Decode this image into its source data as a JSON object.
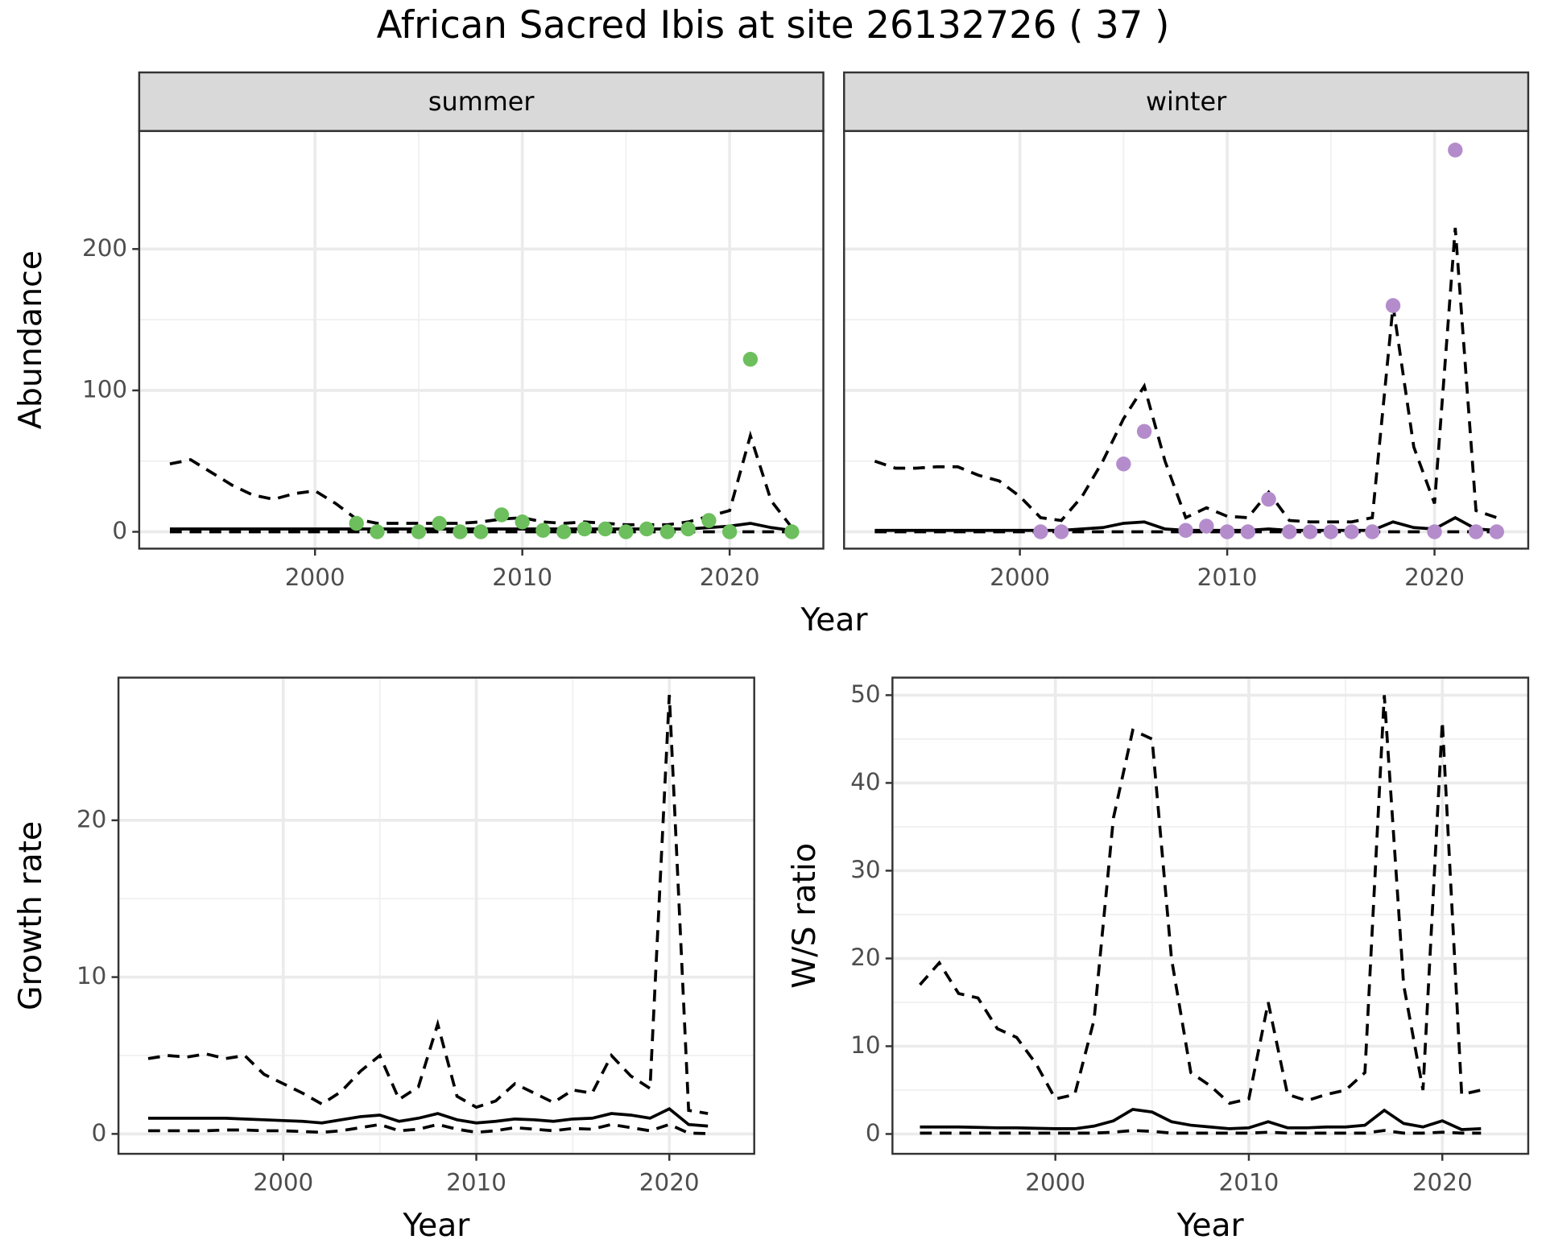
{
  "title": "African Sacred Ibis at site 26132726 ( 37 )",
  "x_label": "Year",
  "chart_data": [
    {
      "type": "line",
      "title": "summer",
      "y_label": "Abundance",
      "x": [
        1993,
        1994,
        1995,
        1996,
        1997,
        1998,
        1999,
        2000,
        2001,
        2002,
        2003,
        2004,
        2005,
        2006,
        2007,
        2008,
        2009,
        2010,
        2011,
        2012,
        2013,
        2014,
        2015,
        2016,
        2017,
        2018,
        2019,
        2020,
        2021,
        2022,
        2023
      ],
      "series": [
        {
          "color": "#000000",
          "dashed": true,
          "values": [
            48,
            51,
            42,
            33,
            26,
            23,
            27,
            29,
            20,
            9,
            6,
            6,
            6,
            6,
            6,
            7,
            9,
            10,
            7,
            6,
            7,
            6,
            5,
            5,
            5,
            7,
            11,
            15,
            68,
            22,
            3
          ]
        },
        {
          "color": "#000000",
          "dashed": false,
          "values": [
            2,
            2,
            2,
            2,
            2,
            2,
            2,
            2,
            2,
            2,
            2,
            2,
            2,
            2,
            2,
            2,
            2,
            2,
            2,
            2,
            2,
            2,
            2,
            2,
            2,
            2,
            3,
            4,
            6,
            3,
            1
          ]
        },
        {
          "color": "#000000",
          "dashed": true,
          "values": [
            0,
            0,
            0,
            0,
            0,
            0,
            0,
            0,
            0,
            0,
            0,
            0,
            0,
            0,
            0,
            0,
            0,
            0,
            0,
            0,
            0,
            0,
            0,
            0,
            0,
            0,
            0,
            0,
            0,
            0,
            0
          ]
        }
      ],
      "points": {
        "color": "#6cbf5c",
        "x": [
          2002,
          2003,
          2005,
          2006,
          2007,
          2008,
          2009,
          2010,
          2011,
          2012,
          2013,
          2014,
          2015,
          2016,
          2017,
          2018,
          2019,
          2020,
          2021,
          2023
        ],
        "values": [
          6,
          0,
          0,
          6,
          0,
          0,
          12,
          7,
          1,
          0,
          2,
          2,
          0,
          2,
          0,
          2,
          8,
          0,
          122,
          0
        ]
      },
      "xlim": [
        1991.52,
        2024.52
      ],
      "xticks": [
        2000,
        2010,
        2020
      ],
      "ylim": [
        -11.9,
        283.5
      ],
      "yticks": [
        0,
        100,
        200
      ],
      "grid": true
    },
    {
      "type": "line",
      "title": "winter",
      "x": [
        1993,
        1994,
        1995,
        1996,
        1997,
        1998,
        1999,
        2000,
        2001,
        2002,
        2003,
        2004,
        2005,
        2006,
        2007,
        2008,
        2009,
        2010,
        2011,
        2012,
        2013,
        2014,
        2015,
        2016,
        2017,
        2018,
        2019,
        2020,
        2021,
        2022,
        2023
      ],
      "series": [
        {
          "color": "#000000",
          "dashed": true,
          "values": [
            50,
            45,
            45,
            46,
            46,
            40,
            36,
            25,
            10,
            8,
            25,
            50,
            80,
            103,
            50,
            10,
            17,
            11,
            10,
            28,
            8,
            7,
            7,
            7,
            10,
            160,
            60,
            20,
            215,
            15,
            10
          ]
        },
        {
          "color": "#000000",
          "dashed": false,
          "values": [
            1,
            1,
            1,
            1,
            1,
            1,
            1,
            1,
            1,
            1,
            2,
            3,
            6,
            7,
            2,
            1,
            1,
            1,
            1,
            2,
            1,
            1,
            1,
            1,
            1,
            7,
            3,
            2,
            10,
            2,
            1
          ]
        },
        {
          "color": "#000000",
          "dashed": true,
          "values": [
            0,
            0,
            0,
            0,
            0,
            0,
            0,
            0,
            0,
            0,
            0,
            0,
            0,
            0,
            0,
            0,
            0,
            0,
            0,
            0,
            0,
            0,
            0,
            0,
            0,
            0,
            0,
            0,
            0,
            0,
            0
          ]
        }
      ],
      "points": {
        "color": "#b48ccb",
        "x": [
          2001,
          2002,
          2005,
          2006,
          2008,
          2009,
          2010,
          2011,
          2012,
          2013,
          2014,
          2015,
          2016,
          2017,
          2018,
          2020,
          2021,
          2022,
          2023
        ],
        "values": [
          0,
          0,
          48,
          71,
          1,
          4,
          0,
          0,
          23,
          0,
          0,
          0,
          0,
          0,
          160,
          0,
          270,
          0,
          0
        ]
      },
      "xlim": [
        1991.52,
        2024.52
      ],
      "xticks": [
        2000,
        2010,
        2020
      ],
      "ylim": [
        -11.9,
        283.5
      ],
      "yticks": [
        0,
        100,
        200
      ],
      "grid": true
    },
    {
      "type": "line",
      "y_label": "Growth rate",
      "x_label": "Year",
      "x": [
        1993,
        1994,
        1995,
        1996,
        1997,
        1998,
        1999,
        2000,
        2001,
        2002,
        2003,
        2004,
        2005,
        2006,
        2007,
        2008,
        2009,
        2010,
        2011,
        2012,
        2013,
        2014,
        2015,
        2016,
        2017,
        2018,
        2019,
        2020,
        2021,
        2022
      ],
      "series": [
        {
          "color": "#000000",
          "dashed": true,
          "values": [
            4.8,
            5,
            4.9,
            5.1,
            4.8,
            5,
            3.8,
            3.2,
            2.6,
            1.9,
            2.7,
            4,
            5,
            2.2,
            3,
            7,
            2.4,
            1.7,
            2.1,
            3.2,
            2.6,
            2,
            2.8,
            2.6,
            5,
            3.7,
            2.9,
            28,
            1.5,
            1.3
          ]
        },
        {
          "color": "#000000",
          "dashed": false,
          "values": [
            1,
            1,
            1,
            1,
            1,
            0.95,
            0.9,
            0.85,
            0.8,
            0.7,
            0.9,
            1.1,
            1.2,
            0.8,
            1,
            1.3,
            0.9,
            0.7,
            0.8,
            0.95,
            0.9,
            0.8,
            0.95,
            1,
            1.3,
            1.2,
            1,
            1.6,
            0.6,
            0.5
          ]
        },
        {
          "color": "#000000",
          "dashed": true,
          "values": [
            0.2,
            0.2,
            0.2,
            0.2,
            0.25,
            0.25,
            0.2,
            0.2,
            0.15,
            0.1,
            0.2,
            0.4,
            0.6,
            0.2,
            0.3,
            0.6,
            0.3,
            0.1,
            0.2,
            0.4,
            0.3,
            0.2,
            0.35,
            0.3,
            0.6,
            0.4,
            0.2,
            0.6,
            0.05,
            0.02
          ]
        }
      ],
      "xlim": [
        1991.46,
        2024.4
      ],
      "xticks": [
        2000,
        2010,
        2020
      ],
      "ylim": [
        -1.27,
        29.1
      ],
      "yticks": [
        0,
        10,
        20
      ],
      "grid": true
    },
    {
      "type": "line",
      "y_label": "W/S ratio",
      "x_label": "Year",
      "x": [
        1993,
        1994,
        1995,
        1996,
        1997,
        1998,
        1999,
        2000,
        2001,
        2002,
        2003,
        2004,
        2005,
        2006,
        2007,
        2008,
        2009,
        2010,
        2011,
        2012,
        2013,
        2014,
        2015,
        2016,
        2017,
        2018,
        2019,
        2020,
        2021,
        2022
      ],
      "series": [
        {
          "color": "#000000",
          "dashed": true,
          "values": [
            17,
            19.5,
            16,
            15.5,
            12,
            11,
            8,
            4,
            4.5,
            13,
            36,
            46,
            45,
            20,
            7,
            5.5,
            3.5,
            4,
            15,
            4.5,
            3.8,
            4.5,
            5,
            7,
            50,
            17,
            5,
            47,
            4.5,
            5
          ]
        },
        {
          "color": "#000000",
          "dashed": false,
          "values": [
            0.8,
            0.8,
            0.8,
            0.75,
            0.7,
            0.7,
            0.65,
            0.6,
            0.6,
            0.9,
            1.5,
            2.8,
            2.5,
            1.4,
            1,
            0.8,
            0.6,
            0.7,
            1.4,
            0.7,
            0.7,
            0.8,
            0.8,
            1,
            2.7,
            1.2,
            0.8,
            1.5,
            0.5,
            0.6
          ]
        },
        {
          "color": "#000000",
          "dashed": true,
          "values": [
            0.1,
            0.1,
            0.1,
            0.1,
            0.1,
            0.1,
            0.1,
            0.1,
            0.1,
            0.1,
            0.2,
            0.4,
            0.3,
            0.1,
            0.1,
            0.1,
            0.1,
            0.1,
            0.2,
            0.1,
            0.1,
            0.1,
            0.1,
            0.1,
            0.4,
            0.1,
            0.1,
            0.2,
            0.1,
            0.1
          ]
        }
      ],
      "xlim": [
        1991.58,
        2024.44
      ],
      "xticks": [
        2000,
        2010,
        2020
      ],
      "ylim": [
        -2.26,
        52.0
      ],
      "yticks": [
        0,
        10,
        20,
        30,
        40,
        50
      ],
      "grid": true
    }
  ]
}
